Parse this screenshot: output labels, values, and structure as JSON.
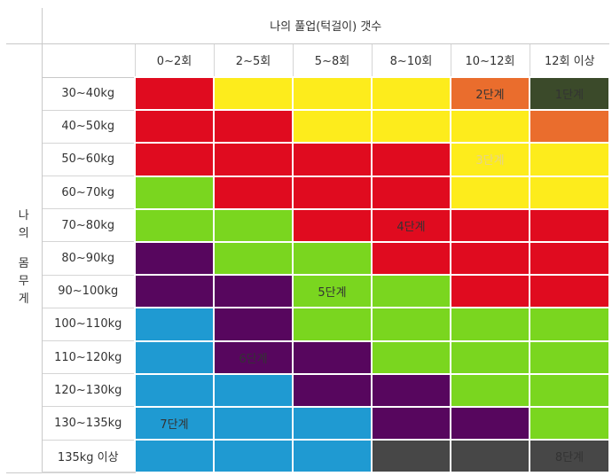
{
  "title": "나의 풀업(턱걸이) 갯수",
  "side_label": [
    "나",
    "의",
    "",
    "몸",
    "무",
    "게"
  ],
  "columns": [
    "0~2회",
    "2~5회",
    "5~8회",
    "8~10회",
    "10~12회",
    "12회 이상"
  ],
  "colors": {
    "red": "#e00b1f",
    "yellow": "#fdec1c",
    "orange": "#ea6d2d",
    "darkgreen": "#3b4a2a",
    "green": "#7ad61f",
    "purple": "#57065e",
    "blue": "#1f9ad2",
    "gray": "#474747"
  },
  "rows": [
    {
      "label": "30~40kg",
      "cells": [
        {
          "c": "red",
          "t": ""
        },
        {
          "c": "yellow",
          "t": ""
        },
        {
          "c": "yellow",
          "t": ""
        },
        {
          "c": "yellow",
          "t": ""
        },
        {
          "c": "orange",
          "t": "2단계"
        },
        {
          "c": "darkgreen",
          "t": "1단계"
        }
      ]
    },
    {
      "label": "40~50kg",
      "cells": [
        {
          "c": "red",
          "t": ""
        },
        {
          "c": "red",
          "t": ""
        },
        {
          "c": "yellow",
          "t": ""
        },
        {
          "c": "yellow",
          "t": ""
        },
        {
          "c": "yellow",
          "t": ""
        },
        {
          "c": "orange",
          "t": ""
        }
      ]
    },
    {
      "label": "50~60kg",
      "cells": [
        {
          "c": "red",
          "t": ""
        },
        {
          "c": "red",
          "t": ""
        },
        {
          "c": "red",
          "t": ""
        },
        {
          "c": "red",
          "t": ""
        },
        {
          "c": "yellow",
          "t": "3단계",
          "faded": true
        },
        {
          "c": "yellow",
          "t": ""
        }
      ]
    },
    {
      "label": "60~70kg",
      "cells": [
        {
          "c": "green",
          "t": ""
        },
        {
          "c": "red",
          "t": ""
        },
        {
          "c": "red",
          "t": ""
        },
        {
          "c": "red",
          "t": ""
        },
        {
          "c": "yellow",
          "t": ""
        },
        {
          "c": "yellow",
          "t": ""
        }
      ]
    },
    {
      "label": "70~80kg",
      "cells": [
        {
          "c": "green",
          "t": ""
        },
        {
          "c": "green",
          "t": ""
        },
        {
          "c": "red",
          "t": ""
        },
        {
          "c": "red",
          "t": "4단계"
        },
        {
          "c": "red",
          "t": ""
        },
        {
          "c": "red",
          "t": ""
        }
      ]
    },
    {
      "label": "80~90kg",
      "cells": [
        {
          "c": "purple",
          "t": ""
        },
        {
          "c": "green",
          "t": ""
        },
        {
          "c": "green",
          "t": ""
        },
        {
          "c": "red",
          "t": ""
        },
        {
          "c": "red",
          "t": ""
        },
        {
          "c": "red",
          "t": ""
        }
      ]
    },
    {
      "label": "90~100kg",
      "cells": [
        {
          "c": "purple",
          "t": ""
        },
        {
          "c": "purple",
          "t": ""
        },
        {
          "c": "green",
          "t": "5단계"
        },
        {
          "c": "green",
          "t": ""
        },
        {
          "c": "red",
          "t": ""
        },
        {
          "c": "red",
          "t": ""
        }
      ]
    },
    {
      "label": "100~110kg",
      "cells": [
        {
          "c": "blue",
          "t": ""
        },
        {
          "c": "purple",
          "t": ""
        },
        {
          "c": "green",
          "t": ""
        },
        {
          "c": "green",
          "t": ""
        },
        {
          "c": "green",
          "t": ""
        },
        {
          "c": "green",
          "t": ""
        }
      ]
    },
    {
      "label": "110~120kg",
      "cells": [
        {
          "c": "blue",
          "t": ""
        },
        {
          "c": "purple",
          "t": "6단계"
        },
        {
          "c": "purple",
          "t": ""
        },
        {
          "c": "green",
          "t": ""
        },
        {
          "c": "green",
          "t": ""
        },
        {
          "c": "green",
          "t": ""
        }
      ]
    },
    {
      "label": "120~130kg",
      "cells": [
        {
          "c": "blue",
          "t": ""
        },
        {
          "c": "blue",
          "t": ""
        },
        {
          "c": "purple",
          "t": ""
        },
        {
          "c": "purple",
          "t": ""
        },
        {
          "c": "green",
          "t": ""
        },
        {
          "c": "green",
          "t": ""
        }
      ]
    },
    {
      "label": "130~135kg",
      "cells": [
        {
          "c": "blue",
          "t": "7단계"
        },
        {
          "c": "blue",
          "t": ""
        },
        {
          "c": "blue",
          "t": ""
        },
        {
          "c": "purple",
          "t": ""
        },
        {
          "c": "purple",
          "t": ""
        },
        {
          "c": "green",
          "t": ""
        }
      ]
    },
    {
      "label": "135kg 이상",
      "cells": [
        {
          "c": "blue",
          "t": ""
        },
        {
          "c": "blue",
          "t": ""
        },
        {
          "c": "blue",
          "t": ""
        },
        {
          "c": "gray",
          "t": ""
        },
        {
          "c": "gray",
          "t": ""
        },
        {
          "c": "gray",
          "t": "8단계"
        }
      ]
    }
  ]
}
